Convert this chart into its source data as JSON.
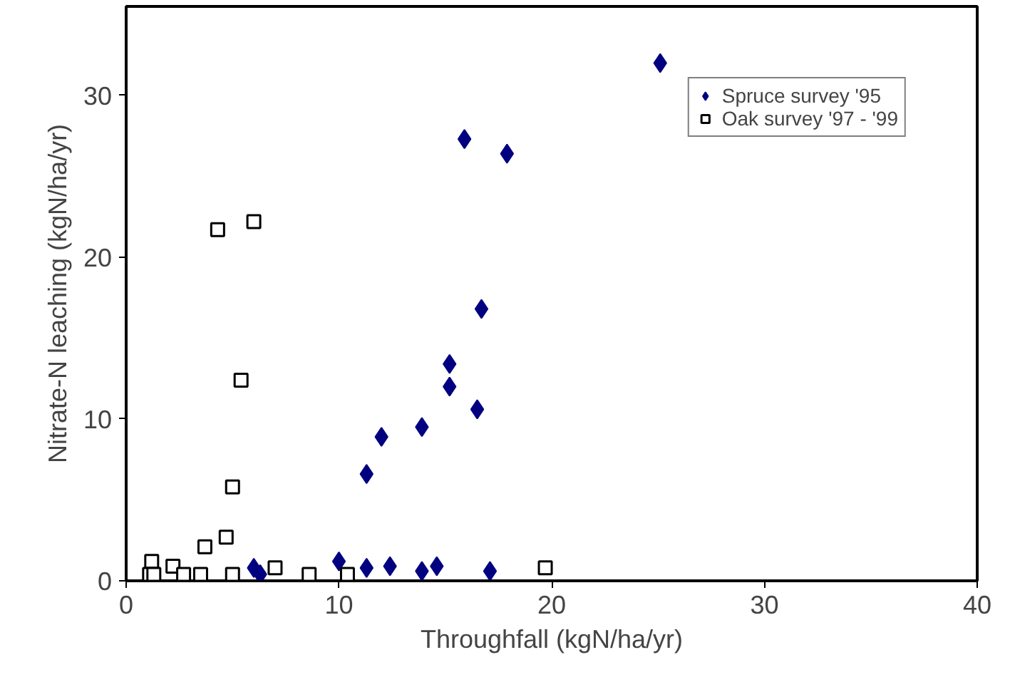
{
  "chart_data": {
    "type": "scatter",
    "xlabel": "Throughfall (kgN/ha/yr)",
    "ylabel": "Nitrate-N leaching (kgN/ha/yr)",
    "xlim": [
      0,
      40
    ],
    "ylim": [
      0,
      35.5
    ],
    "xticks": [
      0,
      10,
      20,
      30,
      40
    ],
    "yticks": [
      0,
      10,
      20,
      30
    ],
    "grid": false,
    "legend": "top right",
    "series": [
      {
        "name": "Spruce survey '95",
        "color": "#000080",
        "marker": "diamond",
        "x": [
          25.1,
          15.9,
          17.9,
          16.7,
          15.2,
          15.2,
          16.5,
          13.9,
          12.0,
          11.3,
          10.0,
          11.3,
          12.4,
          13.9,
          14.6,
          17.1,
          6.3,
          6.0
        ],
        "values": [
          32,
          27.3,
          26.4,
          16.8,
          13.4,
          12.0,
          10.6,
          9.5,
          8.9,
          6.6,
          1.2,
          0.8,
          0.9,
          0.6,
          0.9,
          0.6,
          0.4,
          0.8
        ]
      },
      {
        "name": "Oak survey '97 - '99",
        "color": "#000000",
        "marker": "square",
        "x": [
          4.3,
          6.0,
          5.4,
          5.0,
          4.7,
          3.7,
          1.2,
          2.2,
          1.1,
          1.3,
          2.7,
          3.5,
          5.0,
          7.0,
          8.6,
          10.4,
          19.7
        ],
        "values": [
          21.7,
          22.2,
          12.4,
          5.8,
          2.7,
          2.1,
          1.2,
          0.9,
          0.4,
          0.4,
          0.4,
          0.4,
          0.4,
          0.8,
          0.4,
          0.4,
          0.8
        ]
      }
    ]
  }
}
